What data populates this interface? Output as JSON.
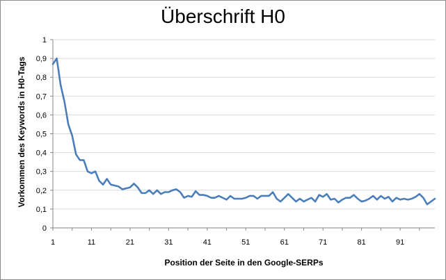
{
  "chart_data": {
    "type": "line",
    "title": "Überschrift H0",
    "xlabel": "Position der Seite in den Google-SERPs",
    "ylabel": "Vorkommen des Keywords in H0-Tags",
    "xlim": [
      1,
      100
    ],
    "ylim": [
      0,
      1
    ],
    "x_tick_labels": [
      "1",
      "11",
      "21",
      "31",
      "41",
      "51",
      "61",
      "71",
      "81",
      "91"
    ],
    "y_tick_labels": [
      "0",
      "0,1",
      "0,2",
      "0,3",
      "0,4",
      "0,5",
      "0,6",
      "0,7",
      "0,8",
      "0,9",
      "1"
    ],
    "grid": "horizontal",
    "legend": "none",
    "series": [
      {
        "color": "#4a7ebb",
        "x": [
          1,
          2,
          3,
          4,
          5,
          6,
          7,
          8,
          9,
          10,
          11,
          12,
          13,
          14,
          15,
          16,
          17,
          18,
          19,
          20,
          21,
          22,
          23,
          24,
          25,
          26,
          27,
          28,
          29,
          30,
          31,
          32,
          33,
          34,
          35,
          36,
          37,
          38,
          39,
          40,
          41,
          42,
          43,
          44,
          45,
          46,
          47,
          48,
          49,
          50,
          51,
          52,
          53,
          54,
          55,
          56,
          57,
          58,
          59,
          60,
          61,
          62,
          63,
          64,
          65,
          66,
          67,
          68,
          69,
          70,
          71,
          72,
          73,
          74,
          75,
          76,
          77,
          78,
          79,
          80,
          81,
          82,
          83,
          84,
          85,
          86,
          87,
          88,
          89,
          90,
          91,
          92,
          93,
          94,
          95,
          96,
          97,
          98,
          99,
          100
        ],
        "y": [
          0.87,
          0.9,
          0.76,
          0.67,
          0.55,
          0.49,
          0.39,
          0.36,
          0.36,
          0.3,
          0.29,
          0.3,
          0.25,
          0.23,
          0.26,
          0.23,
          0.225,
          0.22,
          0.205,
          0.21,
          0.215,
          0.235,
          0.215,
          0.185,
          0.185,
          0.2,
          0.18,
          0.2,
          0.18,
          0.19,
          0.19,
          0.2,
          0.205,
          0.19,
          0.16,
          0.17,
          0.165,
          0.195,
          0.175,
          0.175,
          0.17,
          0.16,
          0.16,
          0.17,
          0.16,
          0.15,
          0.17,
          0.155,
          0.155,
          0.155,
          0.16,
          0.17,
          0.17,
          0.155,
          0.17,
          0.17,
          0.17,
          0.19,
          0.155,
          0.14,
          0.16,
          0.18,
          0.16,
          0.14,
          0.155,
          0.14,
          0.15,
          0.16,
          0.14,
          0.175,
          0.165,
          0.18,
          0.15,
          0.155,
          0.135,
          0.15,
          0.16,
          0.16,
          0.175,
          0.155,
          0.14,
          0.145,
          0.155,
          0.17,
          0.15,
          0.17,
          0.155,
          0.165,
          0.14,
          0.16,
          0.15,
          0.155,
          0.15,
          0.155,
          0.165,
          0.18,
          0.16,
          0.125,
          0.14,
          0.155
        ]
      }
    ]
  }
}
